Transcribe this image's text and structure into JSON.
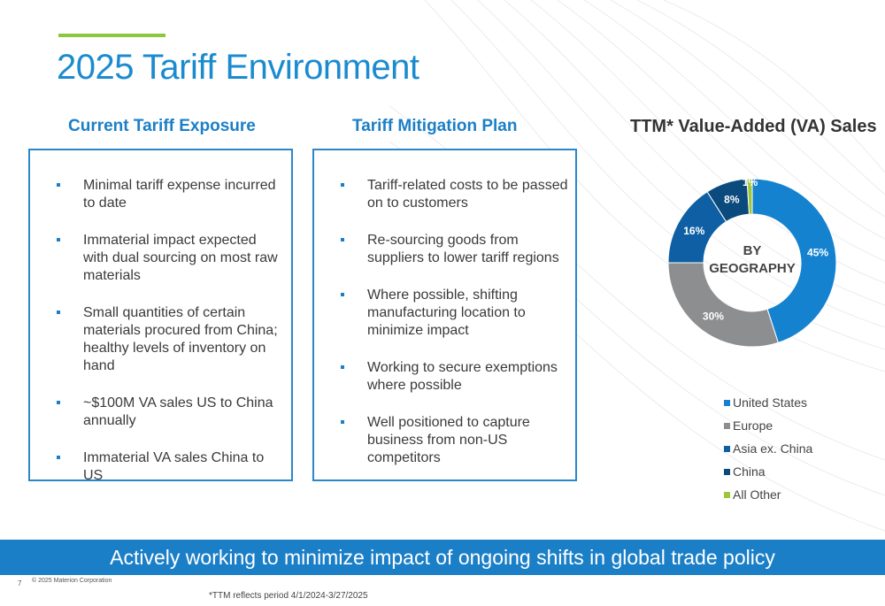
{
  "title": "2025 Tariff Environment",
  "colors": {
    "accent": "#8dc63f",
    "brand_blue": "#1b7fc7",
    "banner": "#1b7fc7"
  },
  "current_exposure": {
    "heading": "Current Tariff Exposure",
    "items": [
      "Minimal tariff expense incurred to date",
      "Immaterial impact expected with dual sourcing on most raw materials",
      "Small quantities of certain materials procured from China; healthy levels of inventory on hand",
      "~$100M VA sales US to China annually",
      "Immaterial VA sales China to US"
    ]
  },
  "mitigation_plan": {
    "heading": "Tariff Mitigation Plan",
    "items": [
      "Tariff-related costs to be passed on to customers",
      "Re-sourcing goods from suppliers to lower tariff regions",
      "Where possible, shifting manufacturing location to minimize impact",
      "Working to secure exemptions where possible",
      "Well positioned to capture business from non-US competitors"
    ]
  },
  "chart_data": {
    "type": "pie",
    "title": "TTM* Value-Added (VA) Sales",
    "center_label": [
      "BY",
      "GEOGRAPHY"
    ],
    "categories": [
      "United States",
      "Europe",
      "Asia ex. China",
      "China",
      "All Other"
    ],
    "values": [
      45,
      30,
      16,
      8,
      1
    ],
    "data_labels": [
      "45%",
      "30%",
      "16%",
      "8%",
      "1%"
    ],
    "colors": [
      "#1582d0",
      "#8c8e90",
      "#0e5fa3",
      "#0b4a7d",
      "#9cc63b"
    ],
    "legend_position": "bottom"
  },
  "banner": "Actively working to minimize impact of ongoing shifts in global trade policy",
  "page_number": "7",
  "copyright": "© 2025 Materion Corporation",
  "footnote": "*TTM reflects period 4/1/2024-3/27/2025"
}
